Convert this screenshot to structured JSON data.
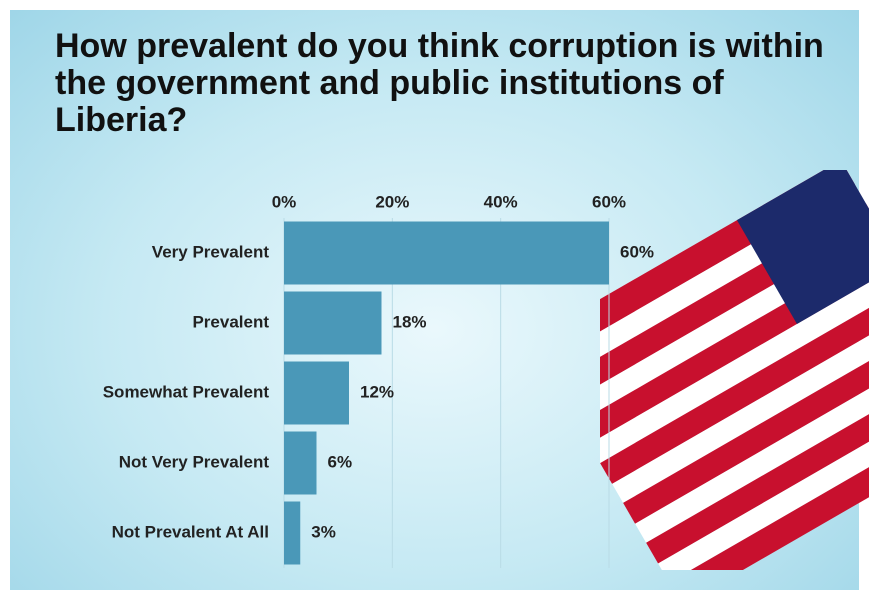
{
  "chart_data": {
    "type": "hbar",
    "title": "How prevalent do you think corruption is within the government and public institutions of Liberia?",
    "categories": [
      "Very Prevalent",
      "Prevalent",
      "Somewhat Prevalent",
      "Not Very Prevalent",
      "Not Prevalent At All"
    ],
    "values": [
      60,
      18,
      12,
      6,
      3
    ],
    "value_labels": [
      "60%",
      "18%",
      "12%",
      "6%",
      "3%"
    ],
    "color": "#4a98b8",
    "xlim": [
      0,
      60
    ],
    "xticks": [
      {
        "value": 0,
        "label": "0%"
      },
      {
        "value": 20,
        "label": "20%"
      },
      {
        "value": 40,
        "label": "40%"
      },
      {
        "value": 60,
        "label": "60%"
      }
    ],
    "grid": true
  }
}
